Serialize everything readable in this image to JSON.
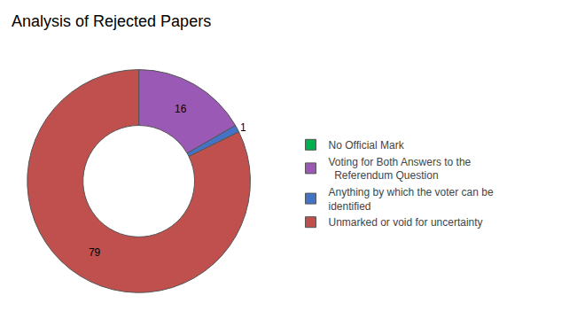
{
  "chart_data": {
    "type": "donut",
    "title": "Analysis of Rejected Papers",
    "categories": [
      "No Official Mark",
      "Voting for Both Answers to the\n  Referendum Question",
      "Anything by which the voter can be\nidentified",
      "Unmarked or void for uncertainty"
    ],
    "values": [
      0.001,
      16,
      1,
      79
    ],
    "value_labels": [
      null,
      "16",
      "1",
      "79"
    ],
    "colors": [
      "#00B050",
      "#9B59B6",
      "#4472C4",
      "#C0504D"
    ],
    "data_labels": true,
    "legend": "right"
  }
}
